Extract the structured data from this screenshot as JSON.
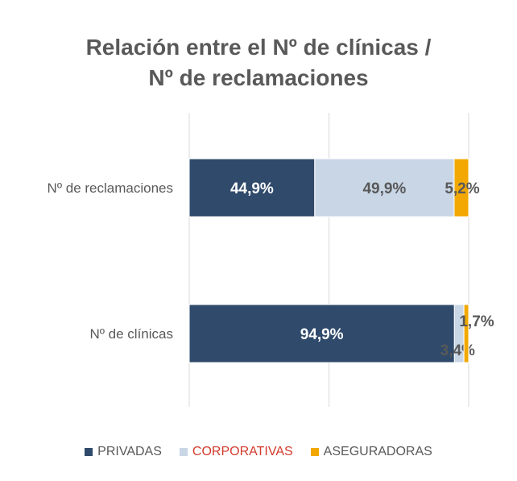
{
  "chart_data": {
    "type": "bar",
    "orientation": "horizontal",
    "stacked": true,
    "percent": true,
    "title": "Relación entre el Nº de clínicas / Nº de reclamaciones",
    "title_lines": [
      "Relación entre el Nº de clínicas /",
      "Nº de reclamaciones"
    ],
    "categories": [
      "Nº de reclamaciones",
      "Nº de clínicas"
    ],
    "series": [
      {
        "name": "PRIVADAS",
        "color": "#2f4a6b",
        "values": [
          44.9,
          94.9
        ],
        "labels": [
          "44,9%",
          "94,9%"
        ]
      },
      {
        "name": "CORPORATIVAS",
        "color": "#c9d6e6",
        "values": [
          49.9,
          3.4
        ],
        "labels": [
          "49,9%",
          "3,4%"
        ]
      },
      {
        "name": "ASEGURADORAS",
        "color": "#f2a800",
        "values": [
          5.2,
          1.7
        ],
        "labels": [
          "5,2%",
          "1,7%"
        ]
      }
    ],
    "xlim": [
      0,
      100
    ],
    "grid": true,
    "legend_position": "bottom",
    "legend_label_colors": [
      "#595959",
      "#d33a2c",
      "#595959"
    ]
  }
}
